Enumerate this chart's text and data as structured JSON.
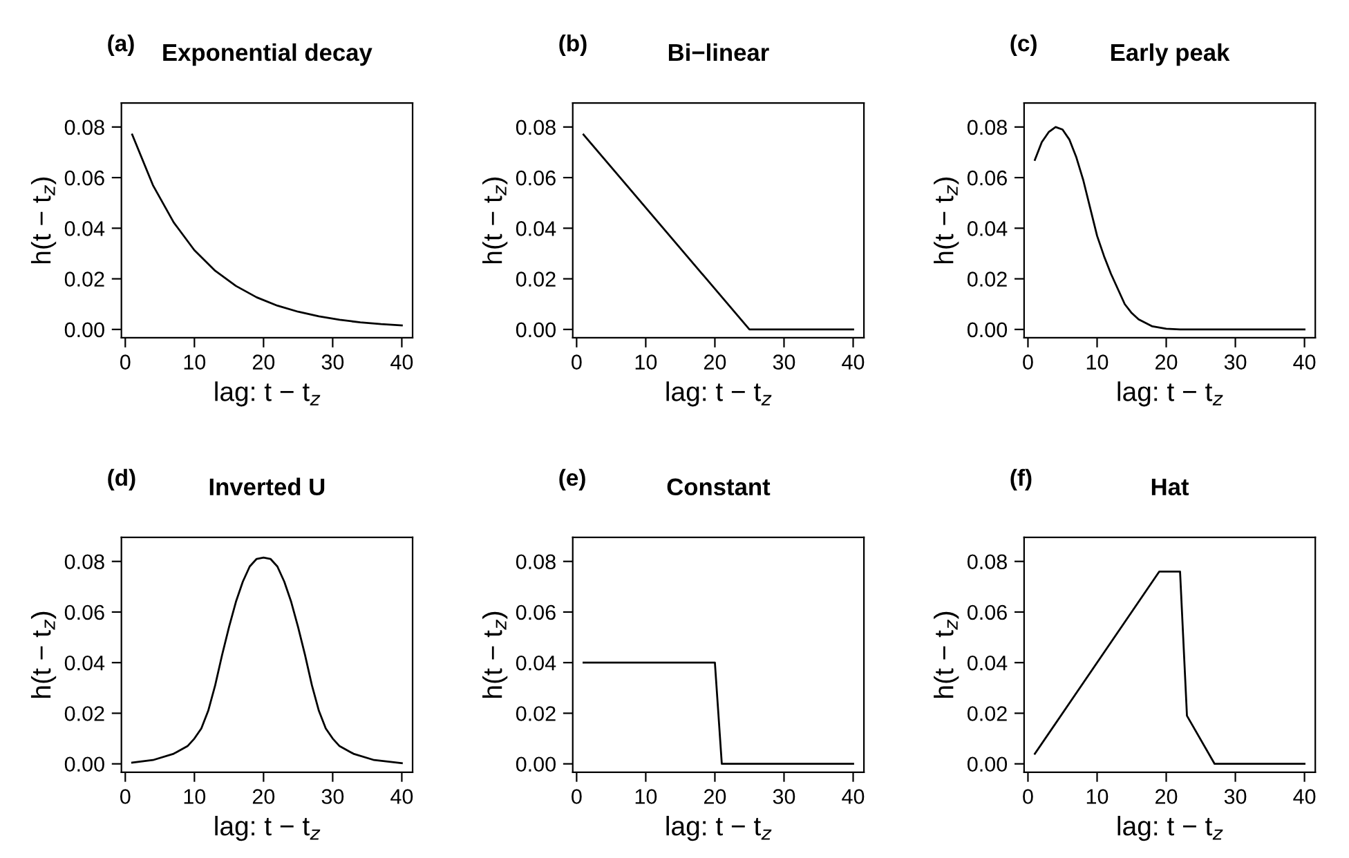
{
  "chart_data": [
    {
      "type": "line",
      "title": "Exponential decay",
      "annotations": [
        "(a)"
      ],
      "xlabel": "lag: t − t$_{z}$",
      "ylabel": "h(t − t$_{z}$)",
      "grid": false,
      "line_style": "solid",
      "marker": "none",
      "xlim": [
        -0.56,
        41.56
      ],
      "ylim": [
        -0.0033,
        0.0895
      ],
      "xticks": [
        0,
        10,
        20,
        30,
        40
      ],
      "yticks": [
        {
          "value": 0,
          "label": "0.00"
        },
        {
          "value": 0.02,
          "label": "0.02"
        },
        {
          "value": 0.04,
          "label": "0.04"
        },
        {
          "value": 0.06,
          "label": "0.06"
        },
        {
          "value": 0.08,
          "label": "0.08"
        }
      ],
      "series": [
        {
          "color": "#000000",
          "x": [
            1,
            4,
            7,
            10,
            13,
            16,
            19,
            22,
            25,
            28,
            31,
            34,
            37,
            40
          ],
          "values": [
            0.077,
            0.057,
            0.0423,
            0.0313,
            0.0232,
            0.0172,
            0.0127,
            0.0094,
            0.007,
            0.0052,
            0.0038,
            0.0028,
            0.0021,
            0.0016
          ]
        }
      ]
    },
    {
      "type": "line",
      "title": "Bi−linear",
      "annotations": [
        "(b)"
      ],
      "xlabel": "lag: t − t$_{z}$",
      "ylabel": "h(t − t$_{z}$)",
      "grid": false,
      "line_style": "solid",
      "marker": "none",
      "xlim": [
        -0.56,
        41.56
      ],
      "ylim": [
        -0.0033,
        0.0895
      ],
      "xticks": [
        0,
        10,
        20,
        30,
        40
      ],
      "yticks": [
        {
          "value": 0,
          "label": "0.00"
        },
        {
          "value": 0.02,
          "label": "0.02"
        },
        {
          "value": 0.04,
          "label": "0.04"
        },
        {
          "value": 0.06,
          "label": "0.06"
        },
        {
          "value": 0.08,
          "label": "0.08"
        }
      ],
      "series": [
        {
          "color": "#000000",
          "x": [
            1,
            25,
            40
          ],
          "values": [
            0.077,
            0,
            0
          ]
        }
      ]
    },
    {
      "type": "line",
      "title": "Early peak",
      "annotations": [
        "(c)"
      ],
      "xlabel": "lag: t − t$_{z}$",
      "ylabel": "h(t − t$_{z}$)",
      "grid": false,
      "line_style": "solid",
      "marker": "none",
      "xlim": [
        -0.56,
        41.56
      ],
      "ylim": [
        -0.0033,
        0.0895
      ],
      "xticks": [
        0,
        10,
        20,
        30,
        40
      ],
      "yticks": [
        {
          "value": 0,
          "label": "0.00"
        },
        {
          "value": 0.02,
          "label": "0.02"
        },
        {
          "value": 0.04,
          "label": "0.04"
        },
        {
          "value": 0.06,
          "label": "0.06"
        },
        {
          "value": 0.08,
          "label": "0.08"
        }
      ],
      "series": [
        {
          "color": "#000000",
          "x": [
            1,
            2,
            3,
            4,
            5,
            6,
            7,
            8,
            9,
            10,
            11,
            12,
            13,
            14,
            15,
            16,
            18,
            20,
            22,
            40
          ],
          "values": [
            0.067,
            0.074,
            0.078,
            0.08,
            0.079,
            0.075,
            0.068,
            0.059,
            0.048,
            0.037,
            0.029,
            0.022,
            0.016,
            0.01,
            0.0065,
            0.004,
            0.0012,
            0.0003,
            0,
            0
          ]
        }
      ]
    },
    {
      "type": "line",
      "title": "Inverted U",
      "annotations": [
        "(d)"
      ],
      "xlabel": "lag: t − t$_{z}$",
      "ylabel": "h(t − t$_{z}$)",
      "grid": false,
      "line_style": "solid",
      "marker": "none",
      "xlim": [
        -0.56,
        41.56
      ],
      "ylim": [
        -0.0033,
        0.0895
      ],
      "xticks": [
        0,
        10,
        20,
        30,
        40
      ],
      "yticks": [
        {
          "value": 0,
          "label": "0.00"
        },
        {
          "value": 0.02,
          "label": "0.02"
        },
        {
          "value": 0.04,
          "label": "0.04"
        },
        {
          "value": 0.06,
          "label": "0.06"
        },
        {
          "value": 0.08,
          "label": "0.08"
        }
      ],
      "series": [
        {
          "color": "#000000",
          "x": [
            1,
            4,
            7,
            9,
            10,
            11,
            12,
            13,
            14,
            15,
            16,
            17,
            18,
            19,
            20,
            21,
            22,
            23,
            24,
            25,
            26,
            27,
            28,
            29,
            30,
            31,
            33,
            36,
            40
          ],
          "values": [
            0.0005,
            0.0015,
            0.004,
            0.007,
            0.01,
            0.014,
            0.021,
            0.031,
            0.043,
            0.054,
            0.064,
            0.072,
            0.078,
            0.081,
            0.0815,
            0.081,
            0.078,
            0.072,
            0.064,
            0.054,
            0.043,
            0.031,
            0.021,
            0.014,
            0.01,
            0.007,
            0.004,
            0.0015,
            0.0003
          ]
        }
      ]
    },
    {
      "type": "line",
      "title": "Constant",
      "annotations": [
        "(e)"
      ],
      "xlabel": "lag: t − t$_{z}$",
      "ylabel": "h(t − t$_{z}$)",
      "grid": false,
      "line_style": "solid",
      "marker": "none",
      "xlim": [
        -0.56,
        41.56
      ],
      "ylim": [
        -0.0033,
        0.0895
      ],
      "xticks": [
        0,
        10,
        20,
        30,
        40
      ],
      "yticks": [
        {
          "value": 0,
          "label": "0.00"
        },
        {
          "value": 0.02,
          "label": "0.02"
        },
        {
          "value": 0.04,
          "label": "0.04"
        },
        {
          "value": 0.06,
          "label": "0.06"
        },
        {
          "value": 0.08,
          "label": "0.08"
        }
      ],
      "series": [
        {
          "color": "#000000",
          "x": [
            1,
            20,
            21,
            40
          ],
          "values": [
            0.04,
            0.04,
            0,
            0
          ]
        }
      ]
    },
    {
      "type": "line",
      "title": "Hat",
      "annotations": [
        "(f)"
      ],
      "xlabel": "lag: t − t$_{z}$",
      "ylabel": "h(t − t$_{z}$)",
      "grid": false,
      "line_style": "solid",
      "marker": "none",
      "xlim": [
        -0.56,
        41.56
      ],
      "ylim": [
        -0.0033,
        0.0895
      ],
      "xticks": [
        0,
        10,
        20,
        30,
        40
      ],
      "yticks": [
        {
          "value": 0,
          "label": "0.00"
        },
        {
          "value": 0.02,
          "label": "0.02"
        },
        {
          "value": 0.04,
          "label": "0.04"
        },
        {
          "value": 0.06,
          "label": "0.06"
        },
        {
          "value": 0.08,
          "label": "0.08"
        }
      ],
      "series": [
        {
          "color": "#000000",
          "x": [
            1,
            19,
            22,
            23,
            27,
            40
          ],
          "values": [
            0.004,
            0.076,
            0.076,
            0.019,
            0,
            0
          ]
        }
      ]
    }
  ]
}
